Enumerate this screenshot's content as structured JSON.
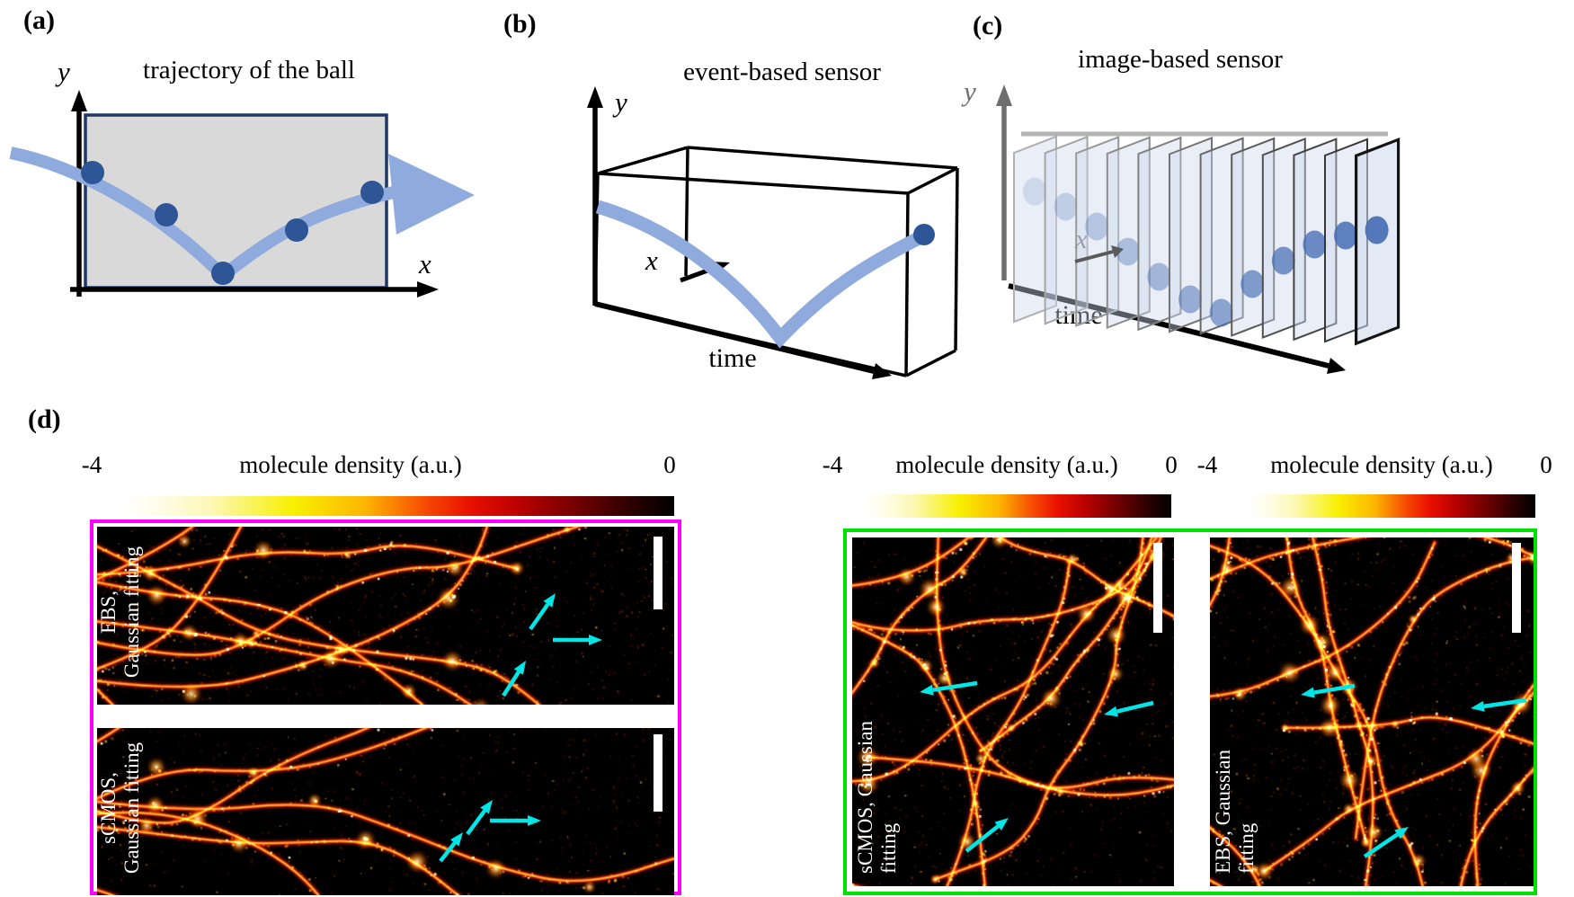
{
  "panels": {
    "a": {
      "tag": "(a)",
      "title": "trajectory of the ball",
      "y_label": "y",
      "x_label": "x"
    },
    "b": {
      "tag": "(b)",
      "title": "event-based sensor",
      "y_label": "y",
      "x_label": "x",
      "time_label": "time"
    },
    "c": {
      "tag": "(c)",
      "title": "image-based sensor",
      "y_label": "y",
      "x_label": "x",
      "time_label": "time"
    },
    "d": {
      "tag": "(d)",
      "colorbars": [
        {
          "min_label": "-4",
          "title": "molecule density (a.u.)",
          "max_label": "0"
        },
        {
          "min_label": "-4",
          "title": "molecule density (a.u.)",
          "max_label": "0"
        },
        {
          "min_label": "-4",
          "title": "molecule density (a.u.)",
          "max_label": "0"
        }
      ],
      "groups": [
        {
          "border_color": "#ff00ff",
          "images": [
            {
              "label_line1": "EBS,",
              "label_line2": "Gaussian fitting"
            },
            {
              "label_line1": "sCMOS,",
              "label_line2": "Gaussian fitting"
            }
          ]
        },
        {
          "border_color": "#00e100",
          "images": [
            {
              "label_line1": "sCMOS, Gaussian",
              "label_line2": "fitting"
            },
            {
              "label_line1": "EBS, Gaussian",
              "label_line2": "fitting"
            }
          ]
        }
      ]
    }
  },
  "colors": {
    "trajectory": "#8faadc",
    "trajectory_dot": "#2e5596",
    "sensor_rect_fill": "#d9d9d9",
    "sensor_rect_border": "#1f3864",
    "magenta_border": "#ff00ff",
    "green_border": "#00e100",
    "cyan_arrow": "#00e5e5",
    "frame_fill": "#cdd9ec"
  }
}
